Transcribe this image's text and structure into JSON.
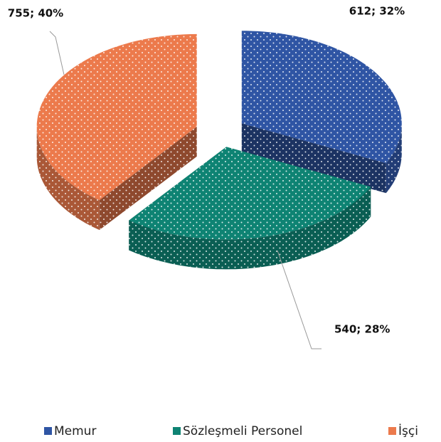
{
  "chart_data": {
    "type": "pie3d",
    "categories": [
      "Memur",
      "Sözleşmeli Personel",
      "İşçi"
    ],
    "values": [
      612,
      540,
      755
    ],
    "value_labels": [
      "612; 32%",
      "540; 28%",
      "755; 40%"
    ],
    "colors": [
      "#2f55a4",
      "#0e8373",
      "#ec7a4c"
    ],
    "legend": "bottom"
  }
}
